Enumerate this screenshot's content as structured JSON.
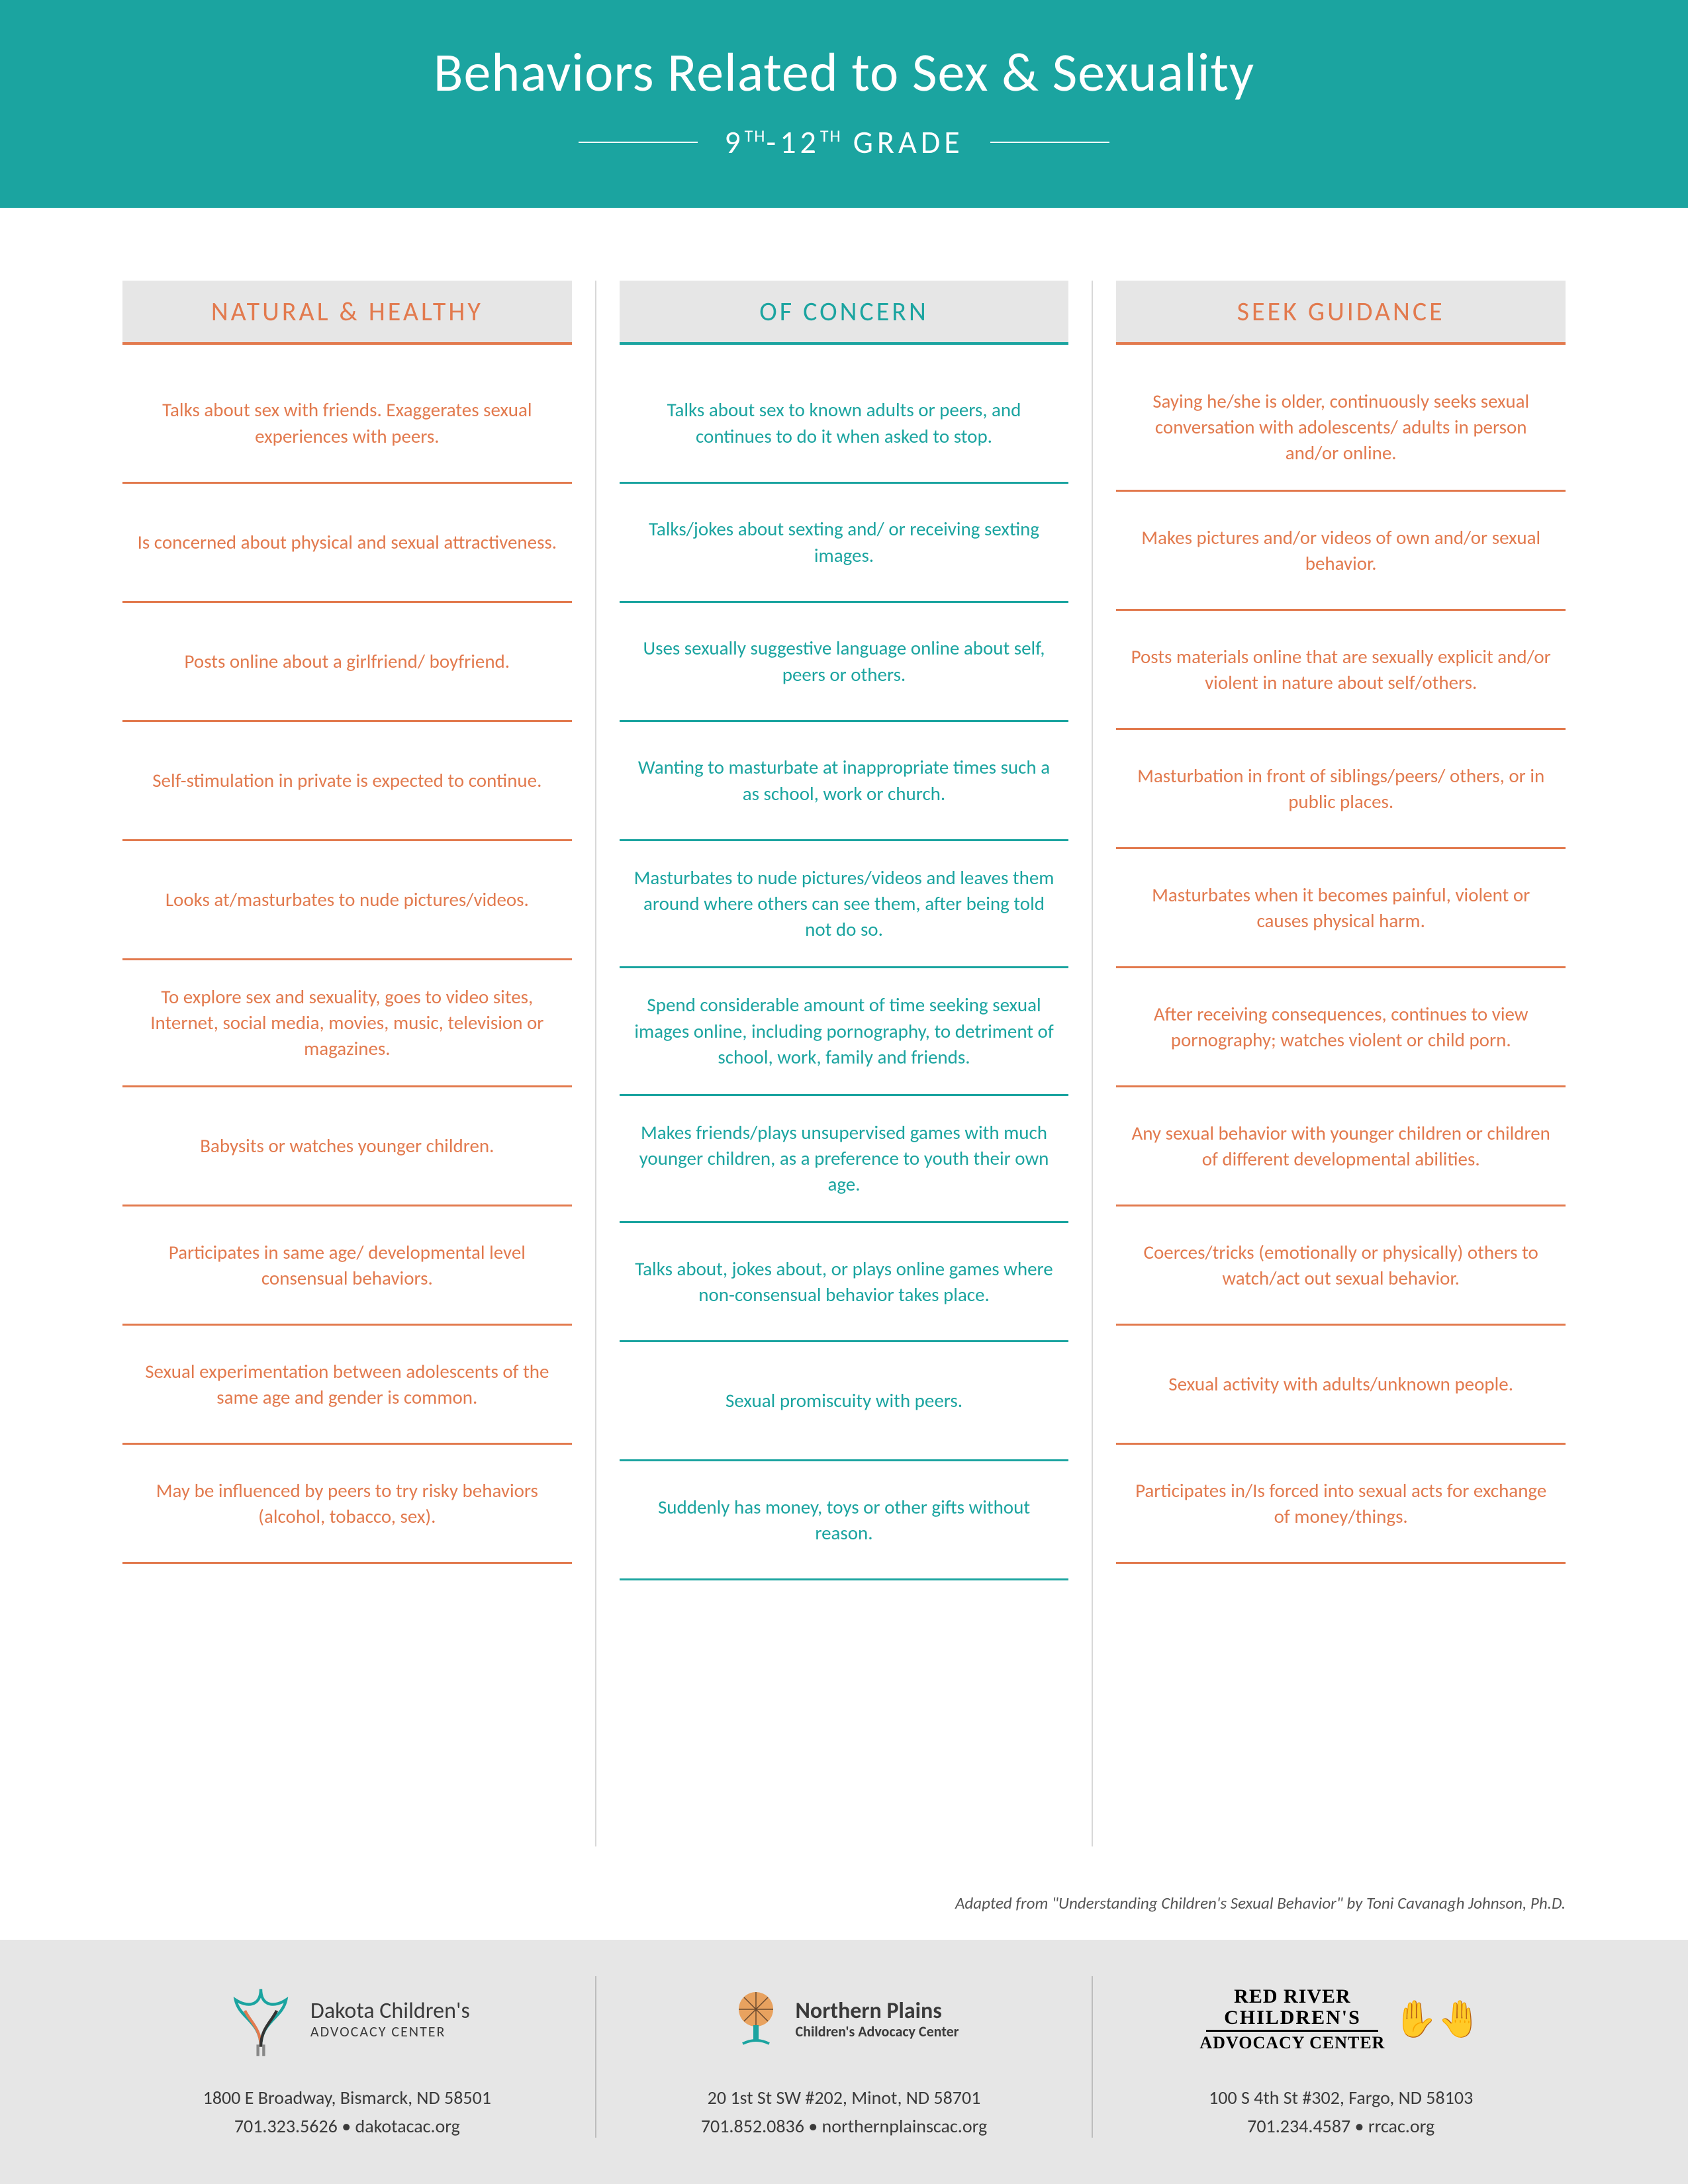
{
  "colors": {
    "teal": "#1ba4a0",
    "orange": "#e27a4e",
    "header_bg": "#e6e6e6",
    "footer_bg": "#e6e6e6",
    "divider": "#d8d8d8",
    "text_muted": "#555"
  },
  "header": {
    "title": "Behaviors Related to Sex & Sexuality",
    "subtitle_pre": "9",
    "subtitle_pre_sup": "TH",
    "subtitle_mid": "-12",
    "subtitle_mid_sup": "TH",
    "subtitle_post": " GRADE"
  },
  "columns": [
    {
      "key": "natural",
      "heading": "NATURAL & HEALTHY",
      "color_class": "col-orange",
      "items": [
        "Talks about sex with friends. Exaggerates sexual experiences with peers.",
        "Is concerned about physical and sexual attractiveness.",
        "Posts online about a girlfriend/ boyfriend.",
        "Self-stimulation in private is expected to continue.",
        "Looks at/masturbates to nude pictures/videos.",
        "To explore sex and sexuality, goes to video sites, Internet, social media, movies, music, television or magazines.",
        "Babysits or watches younger children.",
        "Participates in same age/ developmental level consensual behaviors.",
        "Sexual experimentation between adolescents of the same age and gender is common.",
        "May be influenced by peers to try risky behaviors (alcohol, tobacco, sex)."
      ]
    },
    {
      "key": "concern",
      "heading": "OF CONCERN",
      "color_class": "col-teal",
      "items": [
        "Talks about sex to known adults or peers, and continues to do it when asked to stop.",
        "Talks/jokes about sexting and/ or receiving sexting images.",
        "Uses sexually suggestive language online about self, peers or others.",
        "Wanting to masturbate at inappropriate times such a as school, work or church.",
        "Masturbates to nude pictures/videos and leaves them around where others can see them, after being told not do so.",
        "Spend considerable amount of time seeking sexual images online, including pornography, to detriment of school, work, family and friends.",
        "Makes friends/plays unsupervised games with much younger children, as a preference to youth their own age.",
        "Talks about, jokes about, or plays online games where non-consensual behavior takes place.",
        "Sexual promiscuity with peers.",
        "Suddenly has money, toys or other gifts without reason."
      ]
    },
    {
      "key": "seek",
      "heading": "SEEK GUIDANCE",
      "color_class": "col-orange",
      "items": [
        "Saying he/she is older, continuously seeks sexual conversation with adolescents/ adults in person and/or online.",
        "Makes pictures and/or videos of own and/or sexual behavior.",
        "Posts materials online that are sexually explicit and/or violent in nature about self/others.",
        "Masturbation in front of siblings/peers/ others, or in public places.",
        "Masturbates when it becomes painful, violent or causes physical harm.",
        "After receiving consequences, continues to view pornography; watches violent or child porn.",
        "Any sexual behavior with younger children or children of different developmental abilities.",
        "Coerces/tricks (emotionally or physically) others to watch/act out sexual behavior.",
        "Sexual activity with adults/unknown people.",
        "Participates in/Is forced into sexual acts for exchange of money/things."
      ]
    }
  ],
  "attribution": "Adapted from \"Understanding Children's Sexual Behavior\" by Toni Cavanagh Johnson, Ph.D.",
  "footer": {
    "orgs": [
      {
        "name_main": "Dakota Children's",
        "name_sub": "ADVOCACY CENTER",
        "address": "1800 E Broadway, Bismarck, ND 58501",
        "phone": "701.323.5626",
        "site": "dakotacac.org"
      },
      {
        "name_main": "Northern Plains",
        "name_sub": "Children's Advocacy Center",
        "address": "20 1st St SW #202, Minot, ND 58701",
        "phone": "701.852.0836",
        "site": "northernplainscac.org"
      },
      {
        "name_line1": "RED RIVER",
        "name_line2": "CHILDREN'S",
        "name_line3": "ADVOCACY CENTER",
        "address": "100 S 4th St #302, Fargo, ND 58103",
        "phone": "701.234.4587",
        "site": "rrcac.org"
      }
    ]
  }
}
